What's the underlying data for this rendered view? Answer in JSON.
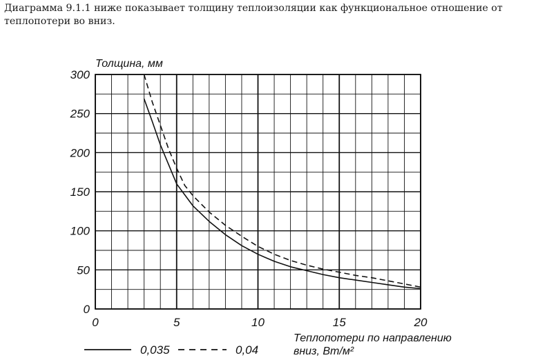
{
  "caption": "Диаграмма 9.1.1 ниже показывает толщину теплоизоляции как функциональное отношение от теплопотери во вниз.",
  "chart_data": {
    "type": "line",
    "ylabel": "Толщина, мм",
    "xlabel_line1": "Теплопотери по направлению",
    "xlabel_line2": "вниз, Вт/м²",
    "xlim": [
      0,
      20
    ],
    "ylim": [
      0,
      300
    ],
    "x_ticks": [
      "0",
      "5",
      "10",
      "15",
      "20"
    ],
    "y_ticks": [
      "0",
      "50",
      "100",
      "150",
      "200",
      "250",
      "300"
    ],
    "grid": true,
    "legend_placement": "bottom-left",
    "series": [
      {
        "name": "0,035",
        "style": "solid",
        "color": "#111111",
        "x": [
          3,
          3.5,
          4,
          4.5,
          5,
          5.5,
          6,
          7,
          8,
          9,
          10,
          11,
          12,
          13,
          14,
          15,
          16,
          17,
          18,
          19,
          20
        ],
        "y": [
          269,
          240,
          210,
          185,
          160,
          146,
          132,
          112,
          95,
          81,
          70,
          61,
          54,
          49,
          44,
          40,
          37,
          34,
          31,
          28,
          26
        ]
      },
      {
        "name": "0,04",
        "style": "dashed",
        "color": "#111111",
        "x": [
          3,
          3.5,
          4,
          4.5,
          5,
          5.5,
          6,
          7,
          8,
          9,
          10,
          11,
          12,
          13,
          14,
          15,
          16,
          17,
          18,
          19,
          20
        ],
        "y": [
          300,
          265,
          235,
          205,
          180,
          158,
          145,
          124,
          107,
          93,
          80,
          70,
          62,
          56,
          51,
          47,
          43,
          40,
          36,
          32,
          28
        ]
      }
    ]
  }
}
